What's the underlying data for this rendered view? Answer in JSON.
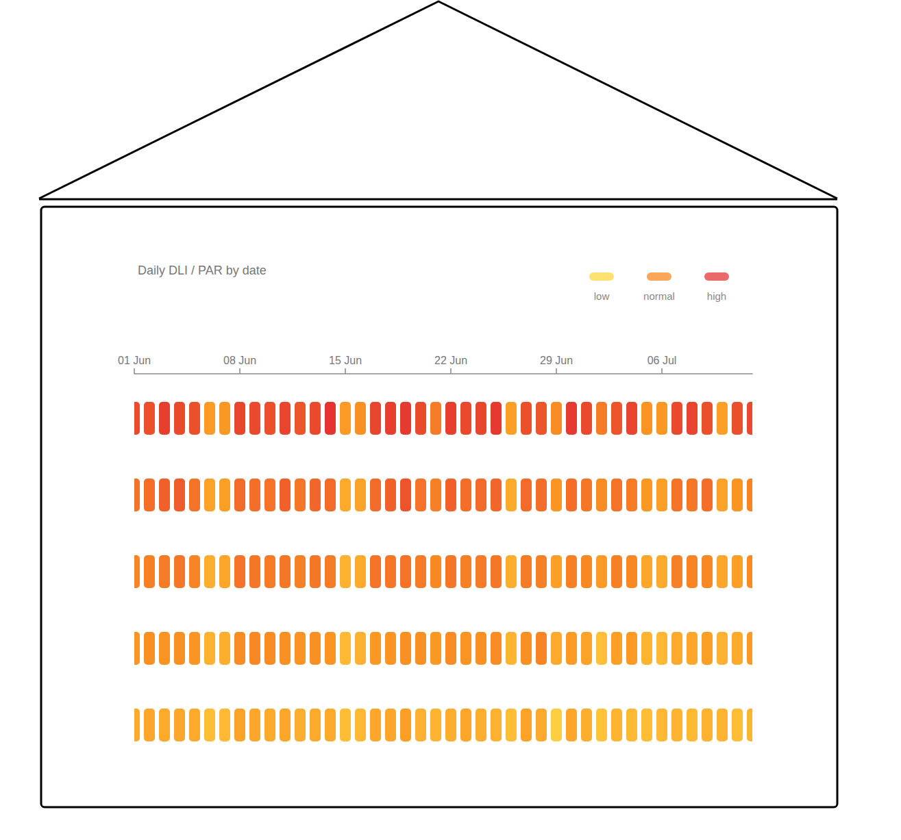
{
  "chart_data": {
    "type": "heatmap",
    "title": "Daily DLI / PAR by date",
    "categories": [
      "01 Jun",
      null,
      null,
      null,
      null,
      null,
      null,
      "08 Jun",
      null,
      null,
      null,
      null,
      null,
      null,
      "15 Jun",
      null,
      null,
      null,
      null,
      null,
      null,
      "22 Jun",
      null,
      null,
      null,
      null,
      null,
      null,
      "29 Jun",
      null,
      null,
      null,
      null,
      null,
      null,
      "06 Jul",
      null,
      null,
      null,
      null,
      null,
      null
    ],
    "series": [
      {
        "values": [
          46,
          45,
          48,
          46,
          45,
          28,
          29,
          47,
          46,
          45,
          47,
          44,
          46,
          50,
          28,
          31,
          47,
          48,
          49,
          46,
          36,
          48,
          46,
          47,
          49,
          27,
          45,
          44,
          32,
          49,
          46,
          36,
          44,
          47,
          30,
          29,
          46,
          47,
          45,
          27,
          45,
          46
        ]
      },
      {
        "values": [
          38,
          39,
          42,
          43,
          38,
          26,
          27,
          40,
          39,
          38,
          42,
          37,
          41,
          40,
          24,
          26,
          40,
          42,
          44,
          38,
          35,
          42,
          39,
          40,
          41,
          24,
          40,
          39,
          30,
          39,
          37,
          32,
          38,
          36,
          29,
          27,
          38,
          37,
          39,
          26,
          30,
          34
        ]
      },
      {
        "values": [
          34,
          35,
          36,
          37,
          34,
          23,
          25,
          38,
          37,
          36,
          37,
          35,
          37,
          36,
          22,
          24,
          38,
          37,
          38,
          36,
          33,
          37,
          35,
          36,
          37,
          23,
          36,
          35,
          27,
          35,
          33,
          28,
          35,
          33,
          25,
          24,
          35,
          34,
          33,
          25,
          27,
          32
        ]
      },
      {
        "values": [
          30,
          31,
          30,
          31,
          30,
          22,
          23,
          32,
          33,
          32,
          31,
          30,
          31,
          30,
          20,
          22,
          29,
          30,
          31,
          31,
          29,
          32,
          30,
          31,
          32,
          21,
          31,
          34,
          24,
          28,
          26,
          18,
          27,
          28,
          21,
          20,
          24,
          25,
          27,
          22,
          24,
          28
        ]
      },
      {
        "values": [
          24,
          25,
          24,
          25,
          24,
          19,
          20,
          26,
          25,
          24,
          25,
          23,
          24,
          24,
          19,
          20,
          25,
          25,
          27,
          22,
          21,
          23,
          25,
          23,
          22,
          19,
          26,
          24,
          14,
          25,
          23,
          17,
          21,
          20,
          19,
          20,
          21,
          20,
          22,
          21,
          19,
          21
        ]
      }
    ],
    "color_range": [
      10,
      50
    ],
    "color_scale": [
      "#fcdc4a",
      "#fdb933",
      "#fa9422",
      "#f26b2a",
      "#e3342f"
    ],
    "color_ticks": [
      {
        "value": 15,
        "label": "low",
        "color": "#fde272"
      },
      {
        "value": 30,
        "label": "normal",
        "color": "#f9a55a"
      },
      {
        "value": 45,
        "label": "high",
        "color": "#ea6a6a"
      }
    ],
    "legend": "top-right",
    "tick_labels": "x"
  }
}
